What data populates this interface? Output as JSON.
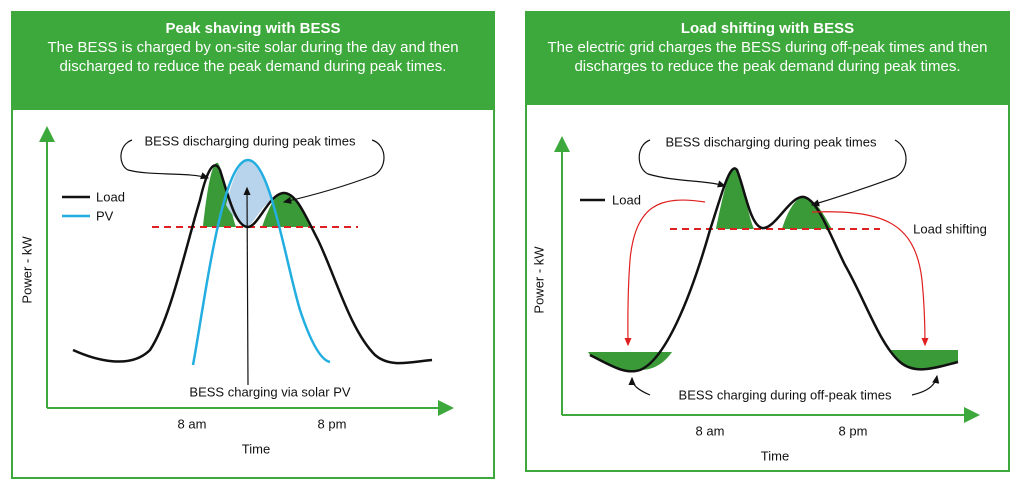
{
  "panels": [
    {
      "title": "Peak shaving with BESS",
      "description": "The BESS is charged by on-site solar during the day and then discharged to reduce the peak demand during peak times.",
      "y_axis_label": "Power - kW",
      "x_axis_label": "Time",
      "x_ticks": [
        "8 am",
        "8 pm"
      ],
      "legend": [
        "Load",
        "PV"
      ],
      "annotations": [
        "BESS discharging during peak times",
        "BESS charging via solar PV"
      ]
    },
    {
      "title": "Load shifting with BESS",
      "description": "The electric grid charges the BESS during off-peak times and then discharges to reduce the peak demand during peak times.",
      "y_axis_label": "Power - kW",
      "x_axis_label": "Time",
      "x_ticks": [
        "8 am",
        "8 pm"
      ],
      "legend": [
        "Load"
      ],
      "annotations": [
        "BESS discharging during peak times",
        "Load shifting",
        "BESS charging during off-peak times"
      ]
    }
  ]
}
